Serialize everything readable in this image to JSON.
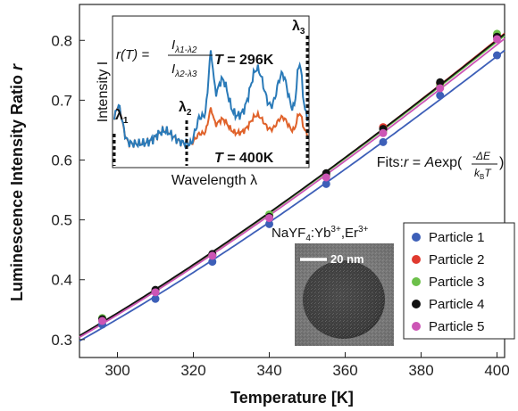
{
  "chart_data": {
    "type": "scatter",
    "xlabel": "Temperature [K]",
    "ylabel": "Luminescence Intensity Ratio r",
    "xlim": [
      290,
      402
    ],
    "ylim": [
      0.27,
      0.86
    ],
    "xticks": [
      300,
      320,
      340,
      360,
      380,
      400
    ],
    "yticks": [
      0.3,
      0.4,
      0.5,
      0.6,
      0.7,
      0.8
    ],
    "grid": false,
    "legend_position": "bottom-right",
    "series": [
      {
        "name": "Particle 1",
        "color": "#3d5fb8",
        "x": [
          296,
          310,
          325,
          340,
          355,
          370,
          385,
          400
        ],
        "y": [
          0.325,
          0.368,
          0.43,
          0.493,
          0.56,
          0.63,
          0.708,
          0.775
        ]
      },
      {
        "name": "Particle 2",
        "color": "#e03a2f",
        "x": [
          296,
          310,
          325,
          340,
          355,
          370,
          385,
          400
        ],
        "y": [
          0.333,
          0.381,
          0.441,
          0.507,
          0.575,
          0.655,
          0.728,
          0.808
        ]
      },
      {
        "name": "Particle 3",
        "color": "#6cc04a",
        "x": [
          296,
          310,
          325,
          340,
          355,
          370,
          385,
          400
        ],
        "y": [
          0.336,
          0.38,
          0.441,
          0.509,
          0.573,
          0.648,
          0.724,
          0.811
        ]
      },
      {
        "name": "Particle 4",
        "color": "#111111",
        "x": [
          296,
          310,
          325,
          340,
          355,
          370,
          385,
          400
        ],
        "y": [
          0.334,
          0.383,
          0.443,
          0.505,
          0.578,
          0.652,
          0.73,
          0.806
        ]
      },
      {
        "name": "Particle 5",
        "color": "#cc55b5",
        "x": [
          296,
          310,
          325,
          340,
          355,
          370,
          385,
          400
        ],
        "y": [
          0.331,
          0.379,
          0.44,
          0.503,
          0.571,
          0.645,
          0.72,
          0.802
        ]
      }
    ],
    "annotations": {
      "fits_prefix": "Fits: ",
      "fits_formula": "r = Aexp(-ΔE/kBT)",
      "material": "NaYF4:Yb3+,Er3+",
      "scale_bar": "20 nm"
    },
    "inset": {
      "xlabel": "Wavelength λ",
      "ylabel": "Intensity I",
      "formula": "r(T) = Iλ1-λ2 / Iλ2-λ3",
      "labels": {
        "lambda1": "λ1",
        "lambda2": "λ2",
        "lambda3": "λ3"
      },
      "series": [
        {
          "name": "T = 296K",
          "color": "#2a7ab8"
        },
        {
          "name": "T = 400K",
          "color": "#e0622a"
        }
      ]
    }
  },
  "text": {
    "fits": "Fits: ",
    "fits_r": "r",
    "fits_eq": " = ",
    "fits_A": "A",
    "fits_exp": "exp(",
    "fits_dE": "-ΔE",
    "fits_kB": "k",
    "fits_kB_sub": "B",
    "fits_T": "T",
    "fits_close": ")",
    "material_base": "NaYF",
    "material_sub": "4",
    "material_rest": ":Yb",
    "material_sup1": "3+",
    "material_comma": ",Er",
    "material_sup2": "3+",
    "scale": "20 nm",
    "inset_xlabel": "Wavelength λ",
    "inset_ylabel": "Intensity I",
    "inset_rT": "r(T) = ",
    "inset_I": "I",
    "inset_num_sub": "λ1-λ2",
    "inset_den_sub": "λ2-λ3",
    "lam1": "λ",
    "lam1_sub": "1",
    "lam2": "λ",
    "lam2_sub": "2",
    "lam3": "λ",
    "lam3_sub": "3",
    "T296_T": "T",
    "T296_val": " = 296K",
    "T400_T": "T",
    "T400_val": " = 400K",
    "ylabel_main": "Luminescence Intensity Ratio ",
    "ylabel_r": "r",
    "xlabel": "Temperature [K]"
  }
}
